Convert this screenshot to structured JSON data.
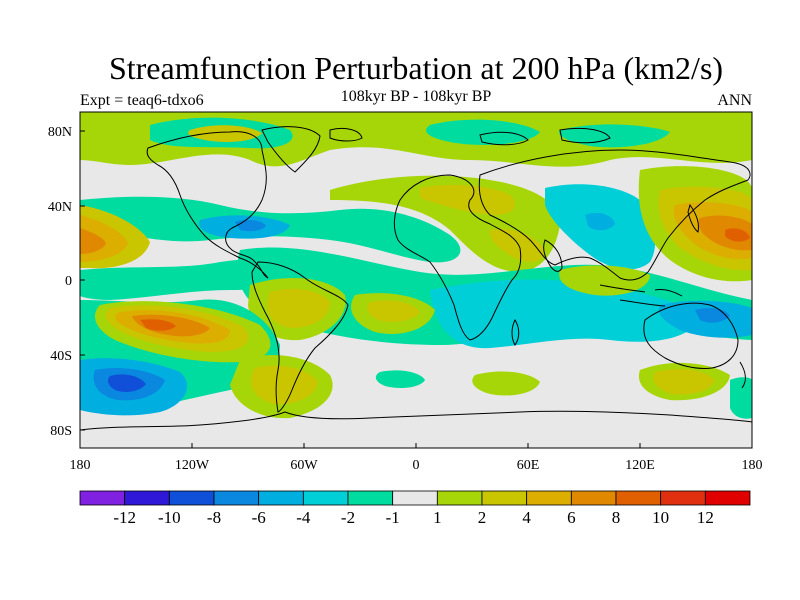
{
  "title": "Streamfunction Perturbation at 200 hPa (km2/s)",
  "subtitle": "108kyr BP - 108kyr BP",
  "left_label": "Expt = teaq6-tdxo6",
  "right_label": "ANN",
  "map": {
    "lon_labels": [
      "180",
      "120W",
      "60W",
      "0",
      "60E",
      "120E",
      "180"
    ],
    "lat_labels": [
      "80N",
      "40N",
      "0",
      "40S",
      "80S"
    ],
    "background_color": "#e8e8e8",
    "regions": [
      {
        "name": "green-band-arctic",
        "color": "#a6d608"
      },
      {
        "name": "yellow-arctic",
        "color": "#c9c600"
      },
      {
        "name": "cyan-arctic",
        "color": "#00d8c8"
      },
      {
        "name": "aqua-north-pacific",
        "color": "#00cfd8"
      },
      {
        "name": "yellow-central-asia",
        "color": "#c9c600"
      },
      {
        "name": "orange-west-pacific",
        "color": "#e0a000"
      },
      {
        "name": "orange-east-pacific",
        "color": "#e0a000"
      },
      {
        "name": "blue-south-pacific",
        "color": "#00a8e0"
      },
      {
        "name": "orange-south-pacific",
        "color": "#e0a000"
      },
      {
        "name": "yellow-south-atlantic",
        "color": "#c9c600"
      },
      {
        "name": "aqua-indian",
        "color": "#00cfd8"
      }
    ]
  },
  "colorbar": {
    "colors": [
      "#8020e0",
      "#3018d8",
      "#1050d8",
      "#0a88e0",
      "#00aee0",
      "#00cfd8",
      "#00dca0",
      "#e8e8e8",
      "#a6d608",
      "#c9c600",
      "#dcae00",
      "#e08800",
      "#e06000",
      "#e03010",
      "#e00000"
    ],
    "labels": [
      "-12",
      "-10",
      "-8",
      "-6",
      "-4",
      "-2",
      "-1",
      "1",
      "2",
      "4",
      "6",
      "8",
      "10",
      "12"
    ]
  }
}
